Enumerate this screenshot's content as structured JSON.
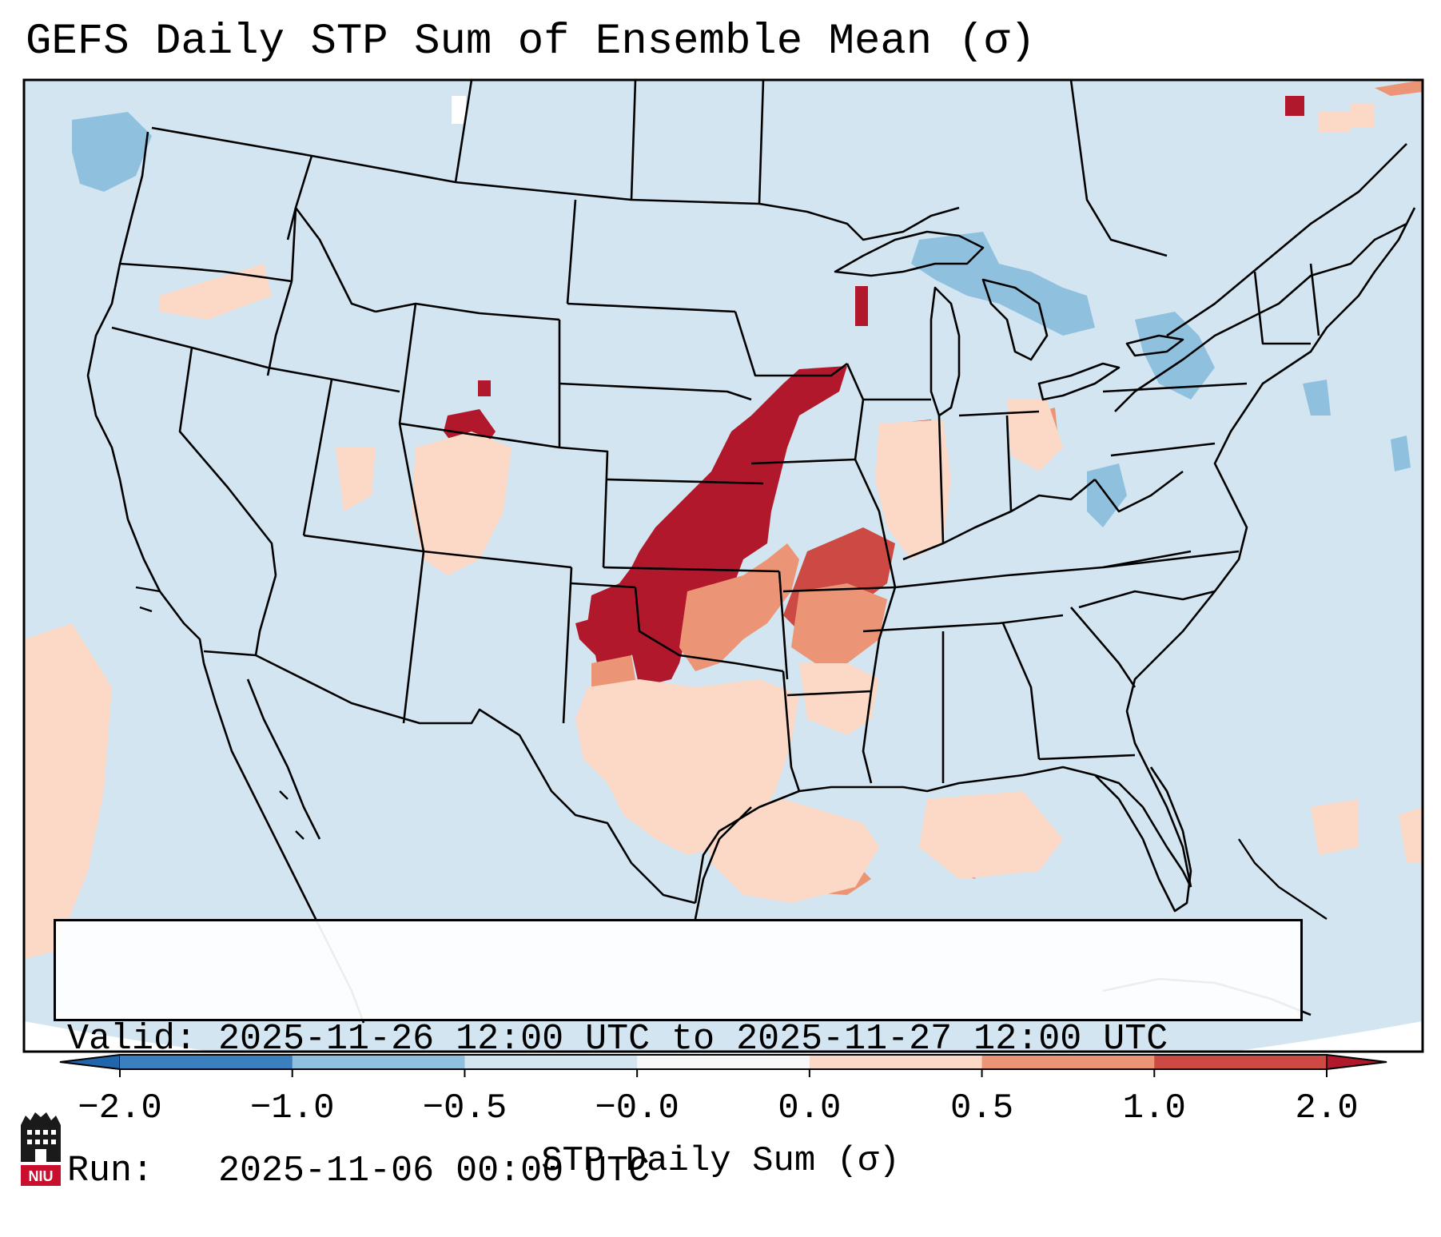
{
  "title": "GEFS Daily STP Sum of Ensemble Mean (σ)",
  "info": {
    "valid": "Valid: 2025-11-26 12:00 UTC to 2025-11-27 12:00 UTC",
    "run": "Run:   2025-11-06 00:00 UTC"
  },
  "colorbar": {
    "label": "STP Daily Sum (σ)",
    "ticks": [
      "−2.0",
      "−1.0",
      "−0.5",
      "−0.0",
      "0.0",
      "0.5",
      "1.0",
      "2.0"
    ],
    "colors": [
      "#3a7fbf",
      "#8fc1de",
      "#d2e5f0",
      "#f8f8f8",
      "#fcd8c6",
      "#eb9476",
      "#cc4a43",
      "#b2182b"
    ],
    "extend": "both"
  },
  "map": {
    "background_color": "#d2e5f0",
    "region": "Continental United States",
    "projection": "Lambert Conformal"
  },
  "logo_text": "NIU"
}
